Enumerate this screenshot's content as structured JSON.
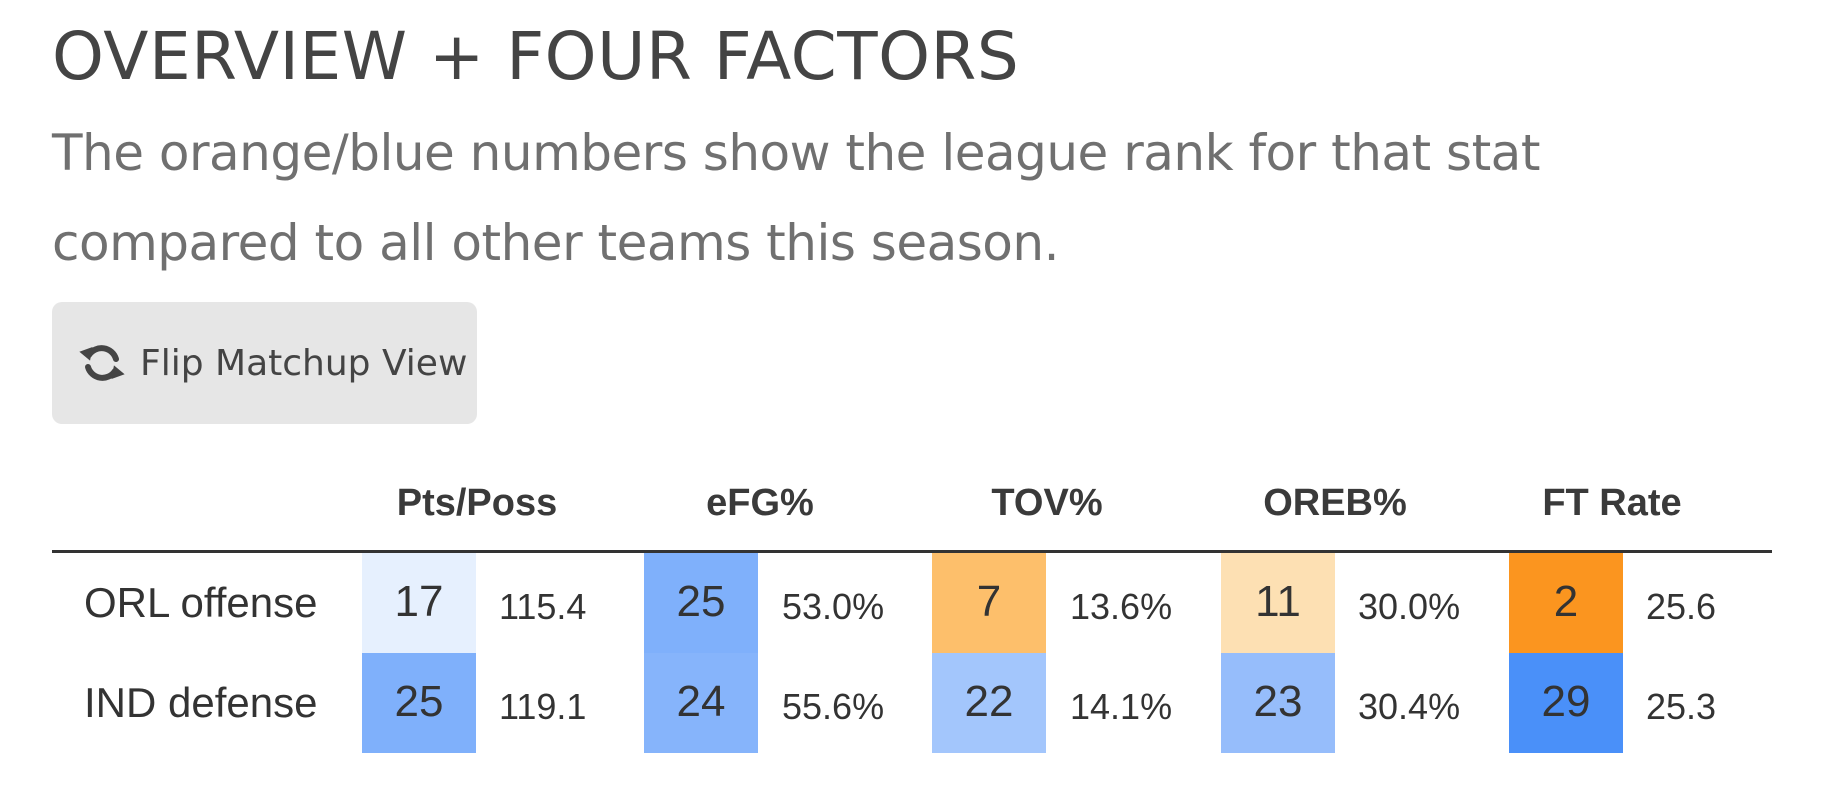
{
  "header": {
    "title": "OVERVIEW + FOUR FACTORS",
    "subtitle": "The orange/blue numbers show the league rank for that stat compared to all other teams this season."
  },
  "flip_button": {
    "label": "Flip Matchup View",
    "icon": "refresh-icon"
  },
  "table": {
    "columns": [
      "Pts/Poss",
      "eFG%",
      "TOV%",
      "OREB%",
      "FT Rate"
    ],
    "rows": [
      {
        "label": "ORL offense",
        "cells": [
          {
            "rank": "17",
            "value": "115.4",
            "color": "#e6f0fe"
          },
          {
            "rank": "25",
            "value": "53.0%",
            "color": "#7fb0fb"
          },
          {
            "rank": "7",
            "value": "13.6%",
            "color": "#fdbf6b"
          },
          {
            "rank": "11",
            "value": "30.0%",
            "color": "#fde0b3"
          },
          {
            "rank": "2",
            "value": "25.6",
            "color": "#fb951f"
          }
        ]
      },
      {
        "label": "IND defense",
        "cells": [
          {
            "rank": "25",
            "value": "119.1",
            "color": "#7fb0fb"
          },
          {
            "rank": "24",
            "value": "55.6%",
            "color": "#86b4fb"
          },
          {
            "rank": "22",
            "value": "14.1%",
            "color": "#a3c6fc"
          },
          {
            "rank": "23",
            "value": "30.4%",
            "color": "#96bdfb"
          },
          {
            "rank": "29",
            "value": "25.3",
            "color": "#4a90f9"
          }
        ]
      }
    ]
  }
}
